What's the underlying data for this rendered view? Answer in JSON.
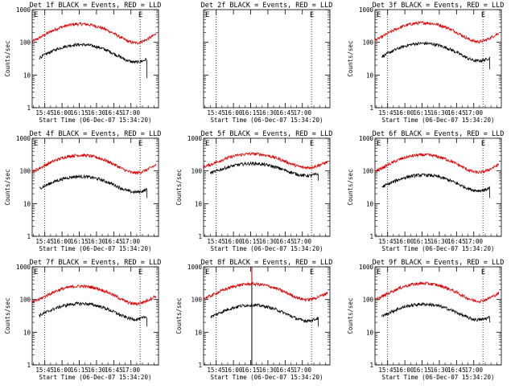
{
  "figure": {
    "subtitle_prefix": "Start Time (",
    "subtitle_time": "06-Dec-07 15:34:20",
    "subtitle_suffix": ")"
  },
  "colors": {
    "events": "#000000",
    "lld": "#e00000",
    "axis": "#000000",
    "background": "#ffffff"
  },
  "chart_data": [
    {
      "type": "line",
      "title": "Det 1f BLACK = Events, RED = LLD",
      "ylabel": "Counts/sec",
      "xlabel": "Start Time (06-Dec-07 15:34:20)",
      "yscale": "log",
      "ylim": [
        1,
        1000
      ],
      "yticks": [
        "1",
        "10",
        "100",
        "1000"
      ],
      "xticks": [
        "15:45",
        "16:00",
        "16:15",
        "16:30",
        "16:45",
        "17:00"
      ],
      "markers": [
        {
          "label": "E",
          "x_min": 0
        },
        {
          "label": "E",
          "x_min": 91
        }
      ],
      "dotted_lines": [
        11,
        94
      ],
      "series": [
        {
          "name": "LLD",
          "color": "#e00000",
          "range_min": [
            0,
            108
          ],
          "base": 230,
          "amp": 0.58
        },
        {
          "name": "Events",
          "color": "#000000",
          "range_min": [
            6,
            100
          ],
          "base": 55,
          "amp": 0.55,
          "end_drop": 8
        }
      ]
    },
    {
      "type": "line",
      "title": "Det 2f BLACK = Events, RED = LLD",
      "ylabel": "",
      "xlabel": "Start Time (06-Dec-07 15:34:20)",
      "yscale": "log",
      "ylim": [
        1,
        1000
      ],
      "yticks": [],
      "xticks": [
        "15:45",
        "16:00",
        "16:15",
        "16:30",
        "16:45",
        "17:00"
      ],
      "markers": [
        {
          "label": "E",
          "x_min": 0
        },
        {
          "label": "E",
          "x_min": 91
        }
      ],
      "dotted_lines": [
        11,
        94
      ],
      "series": []
    },
    {
      "type": "line",
      "title": "Det 3f BLACK = Events, RED = LLD",
      "ylabel": "Counts/sec",
      "xlabel": "Start Time (06-Dec-07 15:34:20)",
      "yscale": "log",
      "ylim": [
        1,
        1000
      ],
      "yticks": [
        "1",
        "10",
        "100",
        "1000"
      ],
      "xticks": [
        "15:45",
        "16:00",
        "16:15",
        "16:30",
        "16:45",
        "17:00"
      ],
      "markers": [
        {
          "label": "E",
          "x_min": 0
        },
        {
          "label": "E",
          "x_min": 91
        }
      ],
      "dotted_lines": [
        11,
        94
      ],
      "series": [
        {
          "name": "LLD",
          "color": "#e00000",
          "range_min": [
            0,
            108
          ],
          "base": 250,
          "amp": 0.58
        },
        {
          "name": "Events",
          "color": "#000000",
          "range_min": [
            6,
            100
          ],
          "base": 60,
          "amp": 0.55,
          "end_drop": 15
        }
      ]
    },
    {
      "type": "line",
      "title": "Det 4f BLACK = Events, RED = LLD",
      "ylabel": "Counts/sec",
      "xlabel": "Start Time (06-Dec-07 15:34:20)",
      "yscale": "log",
      "ylim": [
        1,
        1000
      ],
      "yticks": [
        "1",
        "10",
        "100",
        "1000"
      ],
      "xticks": [
        "15:45",
        "16:00",
        "16:15",
        "16:30",
        "16:45",
        "17:00"
      ],
      "markers": [
        {
          "label": "E",
          "x_min": 0
        },
        {
          "label": "E",
          "x_min": 91
        }
      ],
      "dotted_lines": [
        11,
        94
      ],
      "series": [
        {
          "name": "LLD",
          "color": "#e00000",
          "range_min": [
            0,
            108
          ],
          "base": 195,
          "amp": 0.55
        },
        {
          "name": "Events",
          "color": "#000000",
          "range_min": [
            6,
            100
          ],
          "base": 45,
          "amp": 0.5,
          "end_drop": 15
        }
      ]
    },
    {
      "type": "line",
      "title": "Det 5f BLACK = Events, RED = LLD",
      "ylabel": "Counts/sec",
      "xlabel": "Start Time (06-Dec-07 15:34:20)",
      "yscale": "log",
      "ylim": [
        1,
        1000
      ],
      "yticks": [
        "1",
        "10",
        "100",
        "1000"
      ],
      "xticks": [
        "15:45",
        "16:00",
        "16:15",
        "16:30",
        "16:45",
        "17:00"
      ],
      "markers": [
        {
          "label": "E",
          "x_min": 0
        },
        {
          "label": "E",
          "x_min": 91
        }
      ],
      "dotted_lines": [
        11,
        94
      ],
      "series": [
        {
          "name": "LLD",
          "color": "#e00000",
          "range_min": [
            0,
            108
          ],
          "base": 230,
          "amp": 0.45
        },
        {
          "name": "Events",
          "color": "#000000",
          "range_min": [
            6,
            100
          ],
          "base": 120,
          "amp": 0.4,
          "end_drop": 50
        }
      ]
    },
    {
      "type": "line",
      "title": "Det 6f BLACK = Events, RED = LLD",
      "ylabel": "Counts/sec",
      "xlabel": "Start Time (06-Dec-07 15:34:20)",
      "yscale": "log",
      "ylim": [
        1,
        1000
      ],
      "yticks": [
        "1",
        "10",
        "100",
        "1000"
      ],
      "xticks": [
        "15:45",
        "16:00",
        "16:15",
        "16:30",
        "16:45",
        "17:00"
      ],
      "markers": [
        {
          "label": "E",
          "x_min": 0
        },
        {
          "label": "E",
          "x_min": 91
        }
      ],
      "dotted_lines": [
        11,
        94
      ],
      "series": [
        {
          "name": "LLD",
          "color": "#e00000",
          "range_min": [
            0,
            108
          ],
          "base": 200,
          "amp": 0.55
        },
        {
          "name": "Events",
          "color": "#000000",
          "range_min": [
            6,
            100
          ],
          "base": 50,
          "amp": 0.5,
          "end_drop": 15
        }
      ]
    },
    {
      "type": "line",
      "title": "Det 7f BLACK = Events, RED = LLD",
      "ylabel": "Counts/sec",
      "xlabel": "Start Time (06-Dec-07 15:34:20)",
      "yscale": "log",
      "ylim": [
        1,
        1000
      ],
      "yticks": [
        "1",
        "10",
        "100",
        "1000"
      ],
      "xticks": [
        "15:45",
        "16:00",
        "16:15",
        "16:30",
        "16:45",
        "17:00"
      ],
      "markers": [
        {
          "label": "E",
          "x_min": 0
        },
        {
          "label": "E",
          "x_min": 91
        }
      ],
      "dotted_lines": [
        11,
        94
      ],
      "series": [
        {
          "name": "LLD",
          "color": "#e00000",
          "range_min": [
            0,
            108
          ],
          "base": 165,
          "amp": 0.55
        },
        {
          "name": "Events",
          "color": "#000000",
          "range_min": [
            6,
            100
          ],
          "base": 50,
          "amp": 0.5,
          "end_drop": 15
        }
      ]
    },
    {
      "type": "line",
      "title": "Det 8f BLACK = Events, RED = LLD",
      "ylabel": "Counts/sec",
      "xlabel": "Start Time (06-Dec-07 15:34:20)",
      "yscale": "log",
      "ylim": [
        1,
        1000
      ],
      "yticks": [
        "1",
        "10",
        "100",
        "1000"
      ],
      "xticks": [
        "15:45",
        "16:00",
        "16:15",
        "16:30",
        "16:45",
        "17:00"
      ],
      "markers": [
        {
          "label": "E",
          "x_min": 0
        },
        {
          "label": "E",
          "x_min": 91
        }
      ],
      "dotted_lines": [
        11,
        94
      ],
      "spikes": [
        {
          "x_min": 42,
          "low": 1,
          "high": 1000,
          "color": "#000000"
        },
        {
          "x_min": 42,
          "low": 300,
          "high": 1000,
          "color": "#e00000"
        }
      ],
      "series": [
        {
          "name": "LLD",
          "color": "#e00000",
          "range_min": [
            0,
            108
          ],
          "base": 200,
          "amp": 0.5
        },
        {
          "name": "Events",
          "color": "#000000",
          "range_min": [
            6,
            100
          ],
          "base": 45,
          "amp": 0.5,
          "end_drop": 15
        }
      ]
    },
    {
      "type": "line",
      "title": "Det 9f BLACK = Events, RED = LLD",
      "ylabel": "Counts/sec",
      "xlabel": "Start Time (06-Dec-07 15:34:20)",
      "yscale": "log",
      "ylim": [
        1,
        1000
      ],
      "yticks": [
        "1",
        "10",
        "100",
        "1000"
      ],
      "xticks": [
        "15:45",
        "16:00",
        "16:15",
        "16:30",
        "16:45",
        "17:00"
      ],
      "markers": [
        {
          "label": "E",
          "x_min": 0
        },
        {
          "label": "E",
          "x_min": 91
        }
      ],
      "dotted_lines": [
        11,
        94
      ],
      "series": [
        {
          "name": "LLD",
          "color": "#e00000",
          "range_min": [
            0,
            108
          ],
          "base": 200,
          "amp": 0.55
        },
        {
          "name": "Events",
          "color": "#000000",
          "range_min": [
            6,
            100
          ],
          "base": 48,
          "amp": 0.5,
          "end_drop": 20
        }
      ]
    }
  ]
}
